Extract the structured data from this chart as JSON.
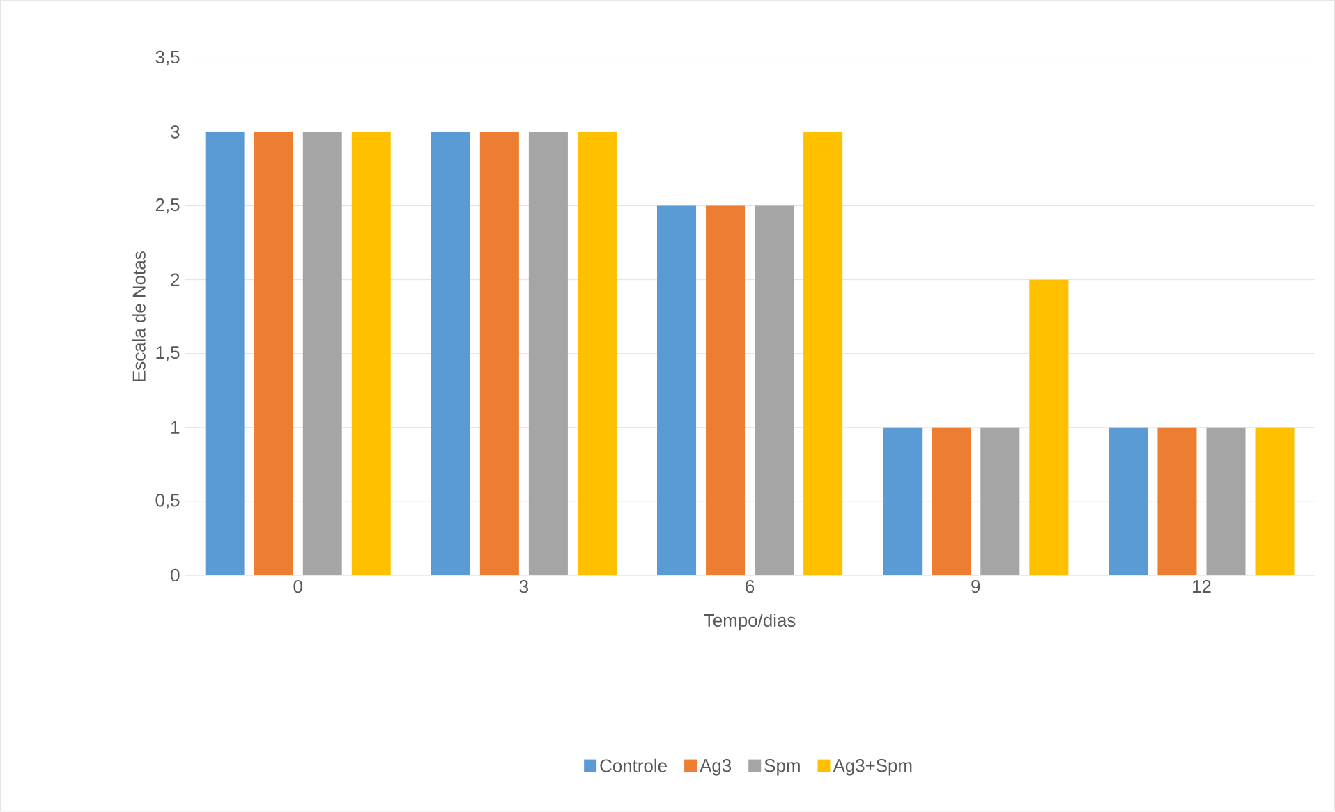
{
  "chart_data": {
    "type": "bar",
    "xlabel": "Tempo/dias",
    "ylabel": "Escala de Notas",
    "categories": [
      "0",
      "3",
      "6",
      "9",
      "12"
    ],
    "series": [
      {
        "name": "Controle",
        "color": "#5b9bd5",
        "values": [
          3,
          3,
          2.5,
          1,
          1
        ]
      },
      {
        "name": "Ag3",
        "color": "#ed7d31",
        "values": [
          3,
          3,
          2.5,
          1,
          1
        ]
      },
      {
        "name": "Spm",
        "color": "#a5a5a5",
        "values": [
          3,
          3,
          2.5,
          1,
          1
        ]
      },
      {
        "name": "Ag3+Spm",
        "color": "#ffc000",
        "values": [
          3,
          3,
          3,
          2,
          1
        ]
      }
    ],
    "ylim": [
      0,
      3.5
    ],
    "yticks": [
      0,
      {
        "value": 0.5,
        "label": "0,5"
      },
      1,
      {
        "value": 1.5,
        "label": "1,5"
      },
      2,
      {
        "value": 2.5,
        "label": "2,5"
      },
      3,
      {
        "value": 3.5,
        "label": "3,5"
      }
    ],
    "grid": "y",
    "legend": "bottom"
  }
}
